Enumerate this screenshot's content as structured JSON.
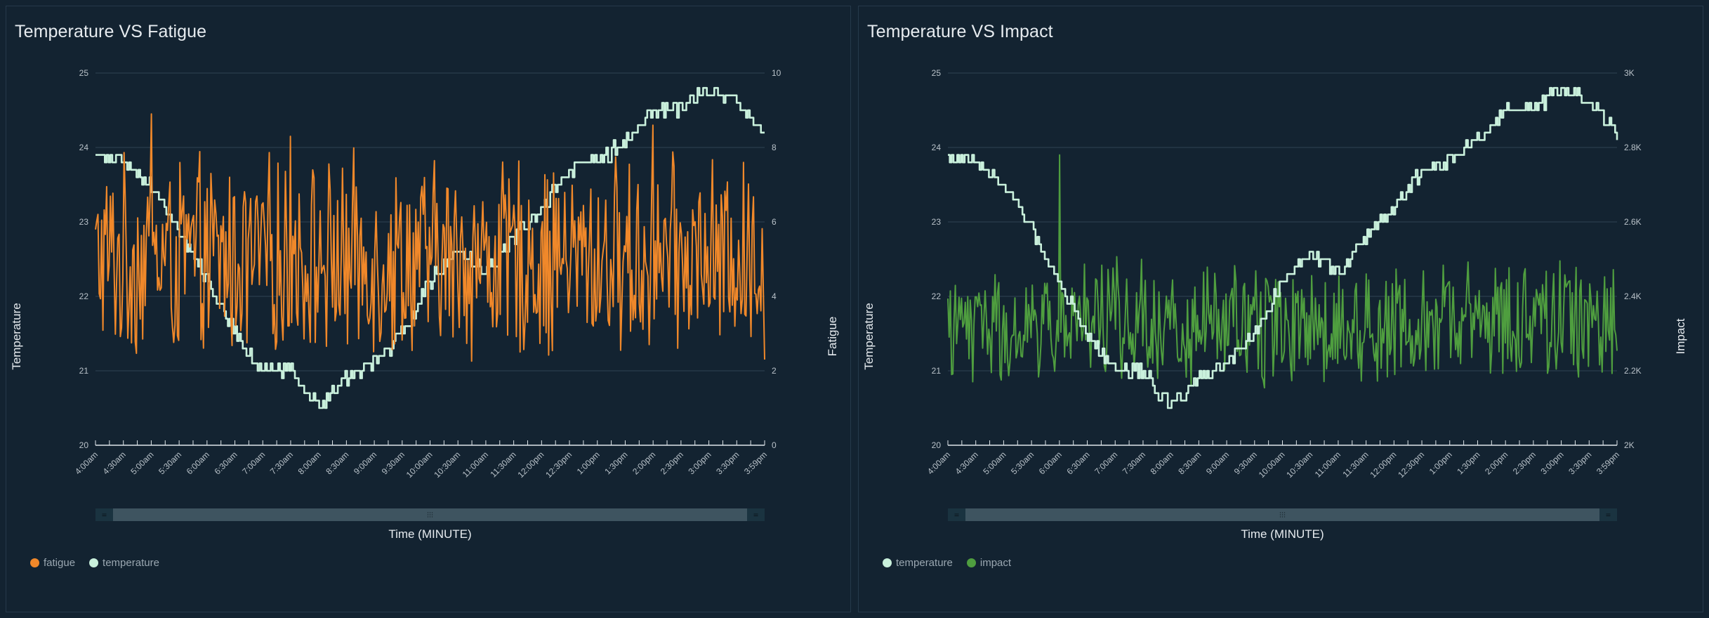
{
  "panels": [
    {
      "title": "Temperature VS Fatigue",
      "legend": [
        {
          "label": "fatigue",
          "color": "#f0882a"
        },
        {
          "label": "temperature",
          "color": "#c9f0dc"
        }
      ]
    },
    {
      "title": "Temperature VS Impact",
      "legend": [
        {
          "label": "temperature",
          "color": "#c9f0dc"
        },
        {
          "label": "impact",
          "color": "#4f9e3f"
        }
      ]
    }
  ],
  "chart_data": [
    {
      "type": "line",
      "title": "Temperature VS Fatigue",
      "xlabel": "Time (MINUTE)",
      "ylabel": "Temperature",
      "y2label": "Fatigue",
      "ylim": [
        20,
        25
      ],
      "y2lim": [
        0,
        10
      ],
      "yticks": [
        "20",
        "21",
        "22",
        "23",
        "24",
        "25"
      ],
      "y2ticks": [
        "0",
        "2",
        "4",
        "6",
        "8",
        "10"
      ],
      "grid": true,
      "legend_position": "bottom-left",
      "x_tick_labels": [
        "4:00am",
        "4:30am",
        "5:00am",
        "5:30am",
        "6:00am",
        "6:30am",
        "7:00am",
        "7:30am",
        "8:00am",
        "8:30am",
        "9:00am",
        "9:30am",
        "10:00am",
        "10:30am",
        "11:00am",
        "11:30am",
        "12:00pm",
        "12:30pm",
        "1:00pm",
        "1:30pm",
        "2:00pm",
        "2:30pm",
        "3:00pm",
        "3:30pm",
        "3:59pm"
      ],
      "series": [
        {
          "name": "fatigue",
          "axis": "right",
          "color": "#f0882a",
          "mean": 5.0,
          "range": [
            3.0,
            8.2
          ],
          "notable_peaks": [
            {
              "x": "5:00am",
              "value": 8.9
            },
            {
              "x": "7:30am",
              "value": 8.3
            },
            {
              "x": "2:00pm",
              "value": 8.6
            }
          ]
        },
        {
          "name": "temperature",
          "axis": "left",
          "color": "#c9f0dc",
          "x": [
            "4:00am",
            "4:30am",
            "5:00am",
            "5:30am",
            "6:00am",
            "6:30am",
            "7:00am",
            "7:30am",
            "8:00am",
            "8:30am",
            "9:00am",
            "9:30am",
            "10:00am",
            "10:30am",
            "11:00am",
            "11:30am",
            "12:00pm",
            "12:30pm",
            "1:00pm",
            "1:30pm",
            "2:00pm",
            "2:30pm",
            "3:00pm",
            "3:30pm",
            "3:59pm"
          ],
          "values": [
            23.9,
            23.8,
            23.5,
            22.9,
            22.2,
            21.5,
            21.0,
            21.0,
            20.5,
            20.9,
            21.1,
            21.5,
            22.2,
            22.6,
            22.3,
            22.8,
            23.2,
            23.7,
            23.8,
            24.1,
            24.5,
            24.5,
            24.8,
            24.6,
            24.2
          ]
        }
      ],
      "slider": {
        "start": 0,
        "end": 1
      }
    },
    {
      "type": "line",
      "title": "Temperature VS Impact",
      "xlabel": "Time (MINUTE)",
      "ylabel": "Temperature",
      "y2label": "Impact",
      "ylim": [
        20,
        25
      ],
      "y2lim": [
        2000,
        3000
      ],
      "yticks": [
        "20",
        "21",
        "22",
        "23",
        "24",
        "25"
      ],
      "y2ticks": [
        "2K",
        "2.2K",
        "2.4K",
        "2.6K",
        "2.8K",
        "3K"
      ],
      "grid": true,
      "legend_position": "bottom-left",
      "x_tick_labels": [
        "4:00am",
        "4:30am",
        "5:00am",
        "5:30am",
        "6:00am",
        "6:30am",
        "7:00am",
        "7:30am",
        "8:00am",
        "8:30am",
        "9:00am",
        "9:30am",
        "10:00am",
        "10:30am",
        "11:00am",
        "11:30am",
        "12:00pm",
        "12:30pm",
        "1:00pm",
        "1:30pm",
        "2:00pm",
        "2:30pm",
        "3:00pm",
        "3:30pm",
        "3:59pm"
      ],
      "series": [
        {
          "name": "temperature",
          "axis": "left",
          "color": "#c9f0dc",
          "x": [
            "4:00am",
            "4:30am",
            "5:00am",
            "5:30am",
            "6:00am",
            "6:30am",
            "7:00am",
            "7:30am",
            "8:00am",
            "8:30am",
            "9:00am",
            "9:30am",
            "10:00am",
            "10:30am",
            "11:00am",
            "11:30am",
            "12:00pm",
            "12:30pm",
            "1:00pm",
            "1:30pm",
            "2:00pm",
            "2:30pm",
            "3:00pm",
            "3:30pm",
            "3:59pm"
          ],
          "values": [
            23.9,
            23.8,
            23.5,
            22.9,
            22.2,
            21.5,
            21.0,
            21.0,
            20.5,
            20.9,
            21.1,
            21.5,
            22.2,
            22.6,
            22.3,
            22.8,
            23.2,
            23.7,
            23.8,
            24.1,
            24.5,
            24.5,
            24.8,
            24.6,
            24.2
          ]
        },
        {
          "name": "impact",
          "axis": "right",
          "color": "#4f9e3f",
          "mean": 2330,
          "range": [
            2200,
            2520
          ],
          "notable_peaks": [
            {
              "x": "6:00am",
              "value": 2780
            }
          ]
        }
      ],
      "slider": {
        "start": 0,
        "end": 1
      }
    }
  ]
}
